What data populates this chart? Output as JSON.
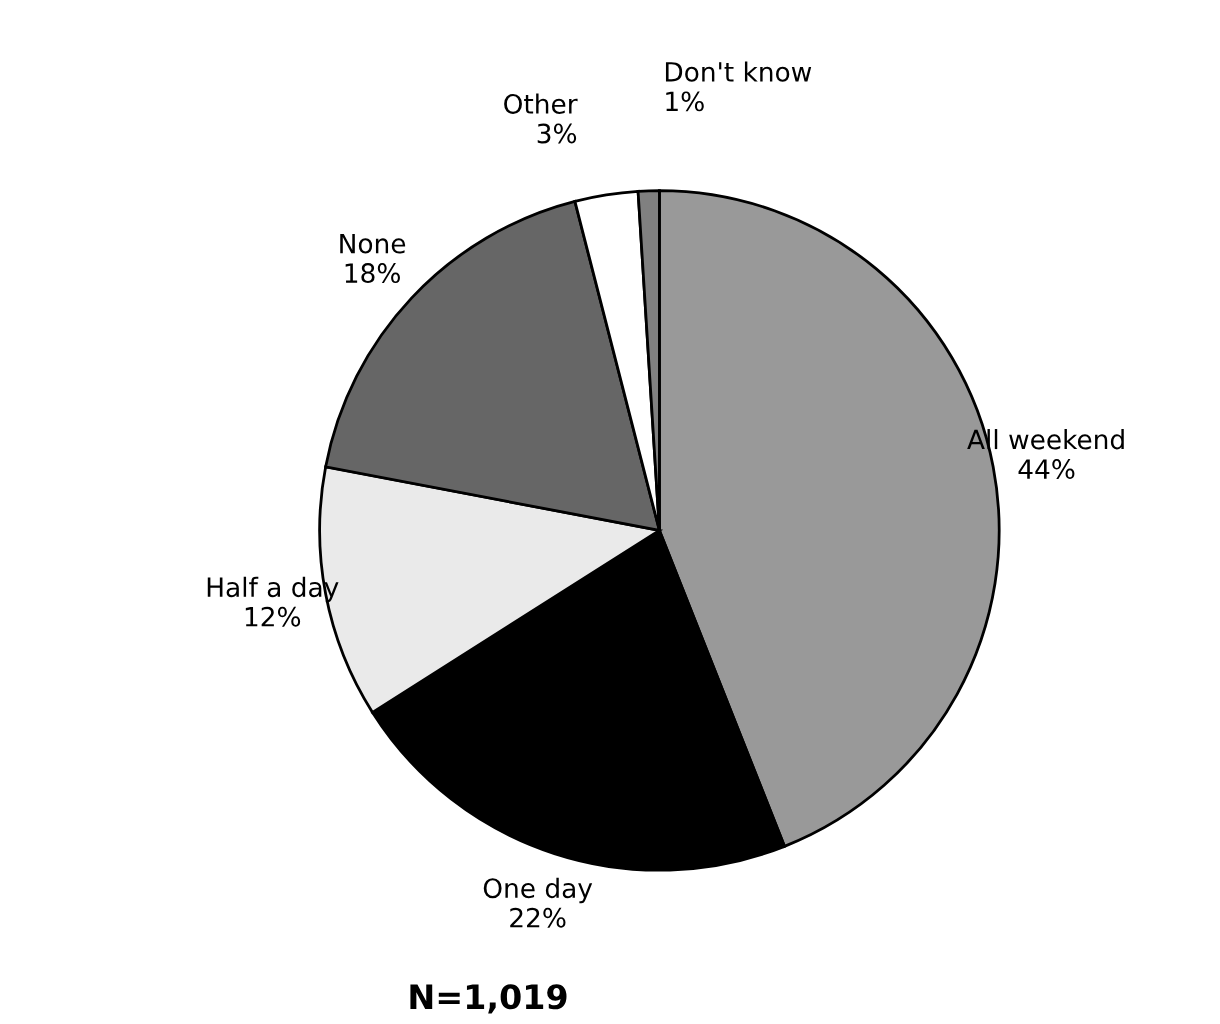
{
  "chart_data": {
    "type": "pie",
    "categories": [
      "All weekend",
      "One day",
      "Half a day",
      "None",
      "Other",
      "Don't know"
    ],
    "values": [
      44,
      22,
      12,
      18,
      3,
      1
    ],
    "value_labels": [
      "44%",
      "22%",
      "12%",
      "18%",
      "3%",
      "1%"
    ],
    "colors": [
      "#999999",
      "#000000",
      "#eaeaea",
      "#666666",
      "#ffffff",
      "#808080"
    ],
    "annotations": [
      "N=1,019"
    ],
    "legend": false
  }
}
